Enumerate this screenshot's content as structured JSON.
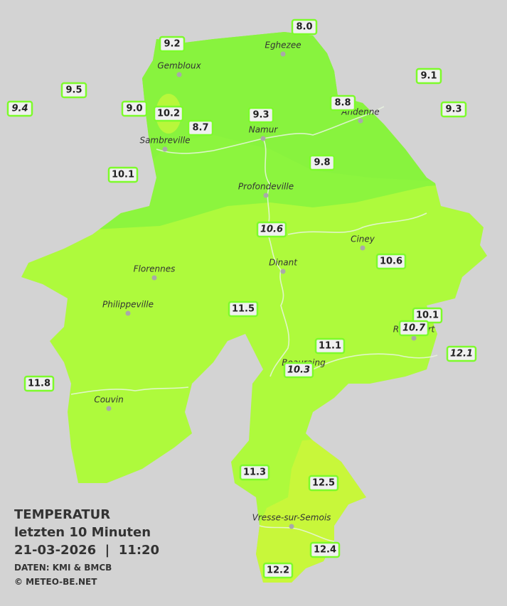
{
  "legend": {
    "title": "TEMPERATUR",
    "period": "letzten 10 Minuten",
    "timestamp": "21-03-2026  |  11:20",
    "source": "DATEN: KMI & BMCB",
    "copyright": "© METEO-BE.NET"
  },
  "cities": [
    "Eghezee",
    "Gembloux",
    "Andenne",
    "Sambreville",
    "Namur",
    "Profondeville",
    "Ciney",
    "Dinant",
    "Florennes",
    "Philippeville",
    "Rochefort",
    "Beauraing",
    "Couvin",
    "Vresse-sur-Semois"
  ],
  "stations": [
    {
      "value": "8.0",
      "italic": false
    },
    {
      "value": "9.2",
      "italic": false
    },
    {
      "value": "9.1",
      "italic": false
    },
    {
      "value": "9.5",
      "italic": false
    },
    {
      "value": "9.4",
      "italic": true
    },
    {
      "value": "9.0",
      "italic": false
    },
    {
      "value": "10.2",
      "italic": false
    },
    {
      "value": "8.8",
      "italic": false
    },
    {
      "value": "9.3",
      "italic": false
    },
    {
      "value": "9.3",
      "italic": false
    },
    {
      "value": "8.7",
      "italic": false
    },
    {
      "value": "9.8",
      "italic": false
    },
    {
      "value": "10.1",
      "italic": false
    },
    {
      "value": "10.6",
      "italic": true
    },
    {
      "value": "10.6",
      "italic": false
    },
    {
      "value": "11.5",
      "italic": false
    },
    {
      "value": "10.1",
      "italic": false
    },
    {
      "value": "10.7",
      "italic": true
    },
    {
      "value": "11.1",
      "italic": false
    },
    {
      "value": "12.1",
      "italic": true
    },
    {
      "value": "10.3",
      "italic": true
    },
    {
      "value": "11.8",
      "italic": false
    },
    {
      "value": "11.3",
      "italic": false
    },
    {
      "value": "12.5",
      "italic": false
    },
    {
      "value": "12.4",
      "italic": false
    },
    {
      "value": "12.2",
      "italic": false
    }
  ]
}
